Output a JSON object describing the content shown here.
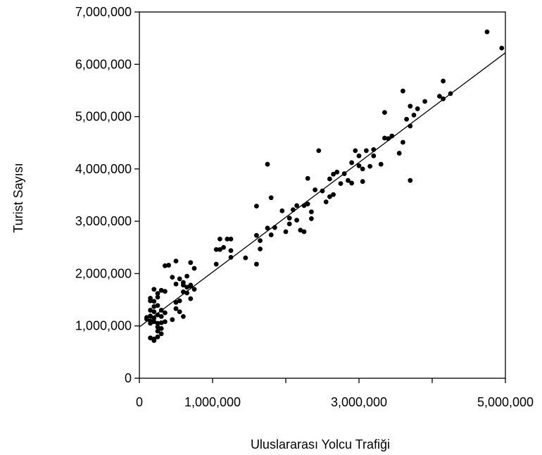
{
  "chart_data": {
    "type": "scatter",
    "title": "",
    "xlabel": "Uluslararası Yolcu Trafiği",
    "ylabel": "Turist Sayısı",
    "xlim": [
      0,
      5000000
    ],
    "ylim": [
      0,
      7000000
    ],
    "x_ticks": [
      0,
      1000000,
      2000000,
      3000000,
      4000000,
      5000000
    ],
    "x_tick_labels": [
      "0",
      "1,000,000",
      "",
      "3,000,000",
      "",
      "5,000,000"
    ],
    "y_ticks": [
      0,
      1000000,
      2000000,
      3000000,
      4000000,
      5000000,
      6000000,
      7000000
    ],
    "y_tick_labels": [
      "0",
      "1,000,000",
      "2,000,000",
      "3,000,000",
      "4,000,000",
      "5,000,000",
      "6,000,000",
      "7,000,000"
    ],
    "grid": false,
    "legend": "none",
    "trend_line": {
      "x": [
        0,
        5000000
      ],
      "y": [
        980000,
        6220000
      ]
    },
    "points": [
      [
        4750000,
        6620000
      ],
      [
        4950000,
        6310000
      ],
      [
        4150000,
        5680000
      ],
      [
        4250000,
        5440000
      ],
      [
        3600000,
        5490000
      ],
      [
        4100000,
        5390000
      ],
      [
        4150000,
        5340000
      ],
      [
        3350000,
        5080000
      ],
      [
        3700000,
        5200000
      ],
      [
        3800000,
        5150000
      ],
      [
        3900000,
        5290000
      ],
      [
        3650000,
        4950000
      ],
      [
        3750000,
        5030000
      ],
      [
        3700000,
        4820000
      ],
      [
        3350000,
        4590000
      ],
      [
        3400000,
        4580000
      ],
      [
        3450000,
        4630000
      ],
      [
        3550000,
        4300000
      ],
      [
        3600000,
        4510000
      ],
      [
        3200000,
        4370000
      ],
      [
        3100000,
        4350000
      ],
      [
        3200000,
        4250000
      ],
      [
        2450000,
        4350000
      ],
      [
        2950000,
        4350000
      ],
      [
        3300000,
        4090000
      ],
      [
        3000000,
        4250000
      ],
      [
        2900000,
        4120000
      ],
      [
        3000000,
        4060000
      ],
      [
        3050000,
        4000000
      ],
      [
        2700000,
        3940000
      ],
      [
        2800000,
        3910000
      ],
      [
        2650000,
        3900000
      ],
      [
        3150000,
        4050000
      ],
      [
        1750000,
        4090000
      ],
      [
        3050000,
        3760000
      ],
      [
        2900000,
        3730000
      ],
      [
        2600000,
        3810000
      ],
      [
        2750000,
        3720000
      ],
      [
        2850000,
        3780000
      ],
      [
        2300000,
        3820000
      ],
      [
        2500000,
        3580000
      ],
      [
        2600000,
        3470000
      ],
      [
        2650000,
        3510000
      ],
      [
        2550000,
        3370000
      ],
      [
        3700000,
        3780000
      ],
      [
        1800000,
        3450000
      ],
      [
        2400000,
        3600000
      ],
      [
        2150000,
        3300000
      ],
      [
        2250000,
        3300000
      ],
      [
        2300000,
        3330000
      ],
      [
        2100000,
        3220000
      ],
      [
        2350000,
        3180000
      ],
      [
        1600000,
        3290000
      ],
      [
        1950000,
        3200000
      ],
      [
        2050000,
        3060000
      ],
      [
        2150000,
        3020000
      ],
      [
        2350000,
        3050000
      ],
      [
        2050000,
        2950000
      ],
      [
        2000000,
        2800000
      ],
      [
        2200000,
        2830000
      ],
      [
        1750000,
        2870000
      ],
      [
        1850000,
        2880000
      ],
      [
        1800000,
        2740000
      ],
      [
        1600000,
        2730000
      ],
      [
        1650000,
        2630000
      ],
      [
        2250000,
        2800000
      ],
      [
        1450000,
        2300000
      ],
      [
        1200000,
        2660000
      ],
      [
        1250000,
        2660000
      ],
      [
        1100000,
        2660000
      ],
      [
        1050000,
        2460000
      ],
      [
        1150000,
        2500000
      ],
      [
        1250000,
        2440000
      ],
      [
        1100000,
        2460000
      ],
      [
        1650000,
        2470000
      ],
      [
        1600000,
        2180000
      ],
      [
        1250000,
        2310000
      ],
      [
        1050000,
        2180000
      ],
      [
        500000,
        2240000
      ],
      [
        700000,
        2210000
      ],
      [
        750000,
        2100000
      ],
      [
        400000,
        2160000
      ],
      [
        350000,
        2150000
      ],
      [
        450000,
        1930000
      ],
      [
        700000,
        1780000
      ],
      [
        550000,
        1900000
      ],
      [
        650000,
        1950000
      ],
      [
        700000,
        1760000
      ],
      [
        650000,
        1740000
      ],
      [
        600000,
        1830000
      ],
      [
        750000,
        1700000
      ],
      [
        650000,
        1630000
      ],
      [
        600000,
        1780000
      ],
      [
        500000,
        1800000
      ],
      [
        700000,
        1520000
      ],
      [
        550000,
        1480000
      ],
      [
        500000,
        1450000
      ],
      [
        600000,
        1650000
      ],
      [
        550000,
        1270000
      ],
      [
        500000,
        1330000
      ],
      [
        450000,
        1120000
      ],
      [
        600000,
        1180000
      ],
      [
        350000,
        1660000
      ],
      [
        300000,
        1680000
      ],
      [
        250000,
        1620000
      ],
      [
        200000,
        1700000
      ],
      [
        150000,
        1480000
      ],
      [
        150000,
        1530000
      ],
      [
        200000,
        1470000
      ],
      [
        250000,
        1550000
      ],
      [
        250000,
        1390000
      ],
      [
        200000,
        1370000
      ],
      [
        150000,
        1300000
      ],
      [
        200000,
        1270000
      ],
      [
        250000,
        1210000
      ],
      [
        300000,
        1300000
      ],
      [
        350000,
        1250000
      ],
      [
        300000,
        1180000
      ],
      [
        200000,
        1150000
      ],
      [
        150000,
        1190000
      ],
      [
        100000,
        1160000
      ],
      [
        200000,
        1080000
      ],
      [
        250000,
        1050000
      ],
      [
        300000,
        1060000
      ],
      [
        350000,
        1080000
      ],
      [
        250000,
        980000
      ],
      [
        300000,
        950000
      ],
      [
        250000,
        900000
      ],
      [
        250000,
        790000
      ],
      [
        200000,
        750000
      ],
      [
        150000,
        770000
      ],
      [
        200000,
        720000
      ],
      [
        150000,
        1090000
      ],
      [
        100000,
        1130000
      ],
      [
        150000,
        1050000
      ],
      [
        300000,
        850000
      ]
    ]
  }
}
